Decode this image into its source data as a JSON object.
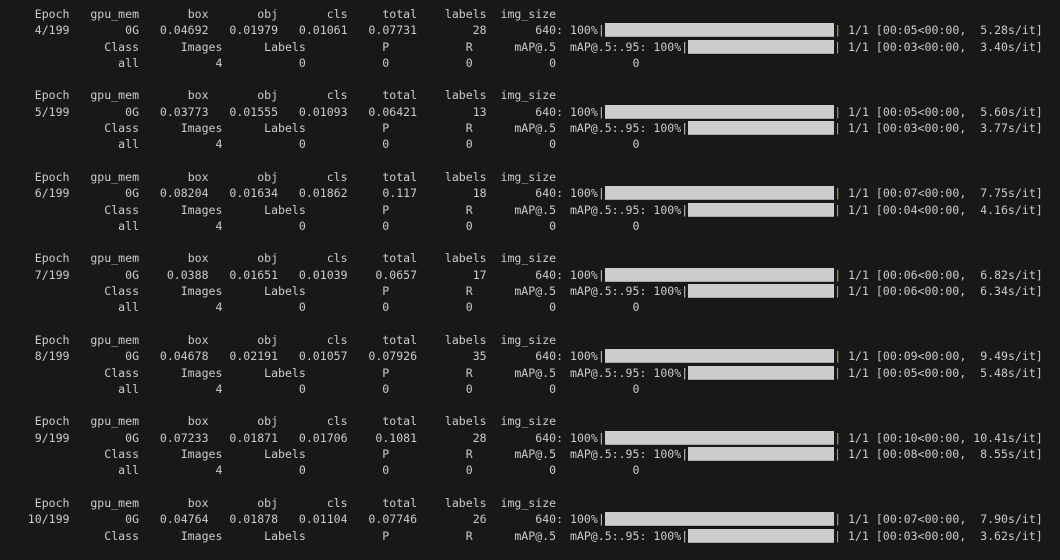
{
  "colors": {
    "background": "#181818",
    "text": "#cccccc",
    "progress_fill": "#cccccc",
    "bar_end": "#c8a84a"
  },
  "terminal": {
    "train_header": [
      "Epoch",
      "gpu_mem",
      "box",
      "obj",
      "cls",
      "total",
      "labels",
      "img_size"
    ],
    "val_header": [
      "Class",
      "Images",
      "Labels",
      "P",
      "R",
      "mAP@.5",
      "mAP@.5:.95"
    ],
    "epochs": [
      {
        "row": [
          "4/199",
          "0G",
          "0.04692",
          "0.01979",
          "0.01061",
          "0.07731",
          "28",
          "640"
        ],
        "train_percent": 100,
        "train_percent_label": ": 100%",
        "train_stats": " 1/1 [00:05<00:00,  5.28s/it]",
        "val_percent": 100,
        "val_percent_label": ": 100%",
        "val_stats": " 1/1 [00:03<00:00,  3.40s/it]",
        "val_row": [
          "all",
          "4",
          "0",
          "0",
          "0",
          "0",
          "0"
        ]
      },
      {
        "row": [
          "5/199",
          "0G",
          "0.03773",
          "0.01555",
          "0.01093",
          "0.06421",
          "13",
          "640"
        ],
        "train_percent": 100,
        "train_percent_label": ": 100%",
        "train_stats": " 1/1 [00:05<00:00,  5.60s/it]",
        "val_percent": 100,
        "val_percent_label": ": 100%",
        "val_stats": " 1/1 [00:03<00:00,  3.77s/it]",
        "val_row": [
          "all",
          "4",
          "0",
          "0",
          "0",
          "0",
          "0"
        ]
      },
      {
        "row": [
          "6/199",
          "0G",
          "0.08204",
          "0.01634",
          "0.01862",
          "0.117",
          "18",
          "640"
        ],
        "train_percent": 100,
        "train_percent_label": ": 100%",
        "train_stats": " 1/1 [00:07<00:00,  7.75s/it]",
        "val_percent": 100,
        "val_percent_label": ": 100%",
        "val_stats": " 1/1 [00:04<00:00,  4.16s/it]",
        "val_row": [
          "all",
          "4",
          "0",
          "0",
          "0",
          "0",
          "0"
        ]
      },
      {
        "row": [
          "7/199",
          "0G",
          "0.0388",
          "0.01651",
          "0.01039",
          "0.0657",
          "17",
          "640"
        ],
        "train_percent": 100,
        "train_percent_label": ": 100%",
        "train_stats": " 1/1 [00:06<00:00,  6.82s/it]",
        "val_percent": 100,
        "val_percent_label": ": 100%",
        "val_stats": " 1/1 [00:06<00:00,  6.34s/it]",
        "val_row": [
          "all",
          "4",
          "0",
          "0",
          "0",
          "0",
          "0"
        ]
      },
      {
        "row": [
          "8/199",
          "0G",
          "0.04678",
          "0.02191",
          "0.01057",
          "0.07926",
          "35",
          "640"
        ],
        "train_percent": 100,
        "train_percent_label": ": 100%",
        "train_stats": " 1/1 [00:09<00:00,  9.49s/it]",
        "val_percent": 100,
        "val_percent_label": ": 100%",
        "val_stats": " 1/1 [00:05<00:00,  5.48s/it]",
        "val_row": [
          "all",
          "4",
          "0",
          "0",
          "0",
          "0",
          "0"
        ]
      },
      {
        "row": [
          "9/199",
          "0G",
          "0.07233",
          "0.01871",
          "0.01706",
          "0.1081",
          "28",
          "640"
        ],
        "train_percent": 100,
        "train_percent_label": ": 100%",
        "train_stats": " 1/1 [00:10<00:00, 10.41s/it]",
        "val_percent": 100,
        "val_percent_label": ": 100%",
        "val_stats": " 1/1 [00:08<00:00,  8.55s/it]",
        "val_row": [
          "all",
          "4",
          "0",
          "0",
          "0",
          "0",
          "0"
        ]
      },
      {
        "row": [
          "10/199",
          "0G",
          "0.04764",
          "0.01878",
          "0.01104",
          "0.07746",
          "26",
          "640"
        ],
        "train_percent": 100,
        "train_percent_label": ": 100%",
        "train_stats": " 1/1 [00:07<00:00,  7.90s/it]",
        "val_percent": 100,
        "val_percent_label": ": 100%",
        "val_stats": " 1/1 [00:03<00:00,  3.62s/it]"
      }
    ]
  }
}
